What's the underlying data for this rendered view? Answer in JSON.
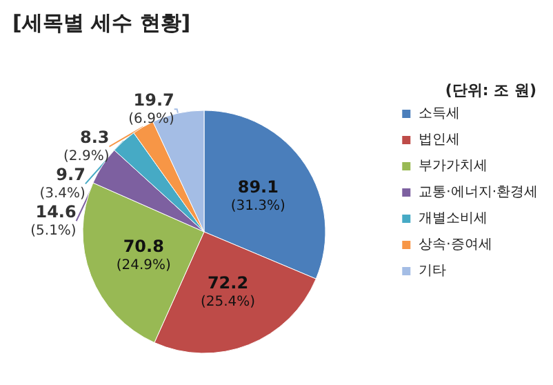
{
  "chart_data": {
    "type": "pie",
    "title": "[세목별 세수 현황]",
    "annotations": [
      "(단위: 조 원)"
    ],
    "categories": [
      "소득세",
      "법인세",
      "부가가치세",
      "교통·에너지·환경세",
      "개별소비세",
      "상속·증여세",
      "기타"
    ],
    "values": [
      89.1,
      72.2,
      70.8,
      14.6,
      9.7,
      8.3,
      19.7
    ],
    "value_labels": [
      "89.1\n(31.3%)",
      "72.2\n(25.4%)",
      "70.8\n(24.9%)",
      "14.6\n(5.1%)",
      "9.7\n(3.4%)",
      "8.3\n(2.9%)",
      "19.7\n(6.9%)"
    ],
    "colors": [
      "#4a7ebb",
      "#be4b48",
      "#98b954",
      "#7d60a0",
      "#46aac5",
      "#f79646",
      "#a4bde5"
    ],
    "legend": "right"
  }
}
